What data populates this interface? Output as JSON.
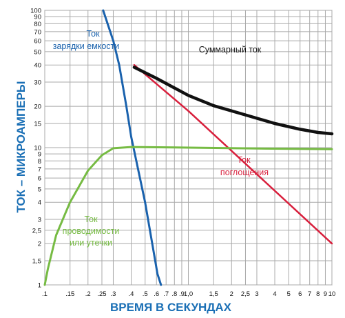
{
  "chart_data": {
    "type": "line",
    "x_scale": "log",
    "y_scale": "log",
    "xlim": [
      0.1,
      10
    ],
    "ylim": [
      1,
      100
    ],
    "grid": true,
    "xlabel": "ВРЕМЯ В СЕКУНДАХ",
    "ylabel": "ТОК – МИКРОАМПЕРЫ",
    "x_ticks": [
      {
        "v": 0.1,
        "label": ".1"
      },
      {
        "v": 0.15,
        "label": ".15"
      },
      {
        "v": 0.2,
        "label": ".2"
      },
      {
        "v": 0.25,
        "label": ".25"
      },
      {
        "v": 0.3,
        "label": ".3"
      },
      {
        "v": 0.4,
        "label": ".4"
      },
      {
        "v": 0.5,
        "label": ".5"
      },
      {
        "v": 0.6,
        "label": ".6"
      },
      {
        "v": 0.7,
        "label": ".7"
      },
      {
        "v": 0.8,
        "label": ".8"
      },
      {
        "v": 0.9,
        "label": ".9"
      },
      {
        "v": 1.0,
        "label": "1,0"
      },
      {
        "v": 1.5,
        "label": "1,5"
      },
      {
        "v": 2.0,
        "label": "2"
      },
      {
        "v": 2.5,
        "label": "2,5"
      },
      {
        "v": 3.0,
        "label": "3"
      },
      {
        "v": 4.0,
        "label": "4"
      },
      {
        "v": 5.0,
        "label": "5"
      },
      {
        "v": 6.0,
        "label": "6"
      },
      {
        "v": 7.0,
        "label": "7"
      },
      {
        "v": 8.0,
        "label": "8"
      },
      {
        "v": 9.0,
        "label": "9"
      },
      {
        "v": 10.0,
        "label": "10"
      }
    ],
    "y_ticks": [
      {
        "v": 1,
        "label": "1"
      },
      {
        "v": 1.5,
        "label": "1,5"
      },
      {
        "v": 2,
        "label": "2"
      },
      {
        "v": 2.5,
        "label": "2,5"
      },
      {
        "v": 3,
        "label": "3"
      },
      {
        "v": 4,
        "label": "4"
      },
      {
        "v": 5,
        "label": "5"
      },
      {
        "v": 6,
        "label": "6"
      },
      {
        "v": 7,
        "label": "7"
      },
      {
        "v": 8,
        "label": "8"
      },
      {
        "v": 9,
        "label": "9"
      },
      {
        "v": 10,
        "label": "10"
      },
      {
        "v": 15,
        "label": "15"
      },
      {
        "v": 20,
        "label": "20"
      },
      {
        "v": 30,
        "label": "30"
      },
      {
        "v": 40,
        "label": "40"
      },
      {
        "v": 50,
        "label": "50"
      },
      {
        "v": 60,
        "label": "60"
      },
      {
        "v": 70,
        "label": "70"
      },
      {
        "v": 80,
        "label": "80"
      },
      {
        "v": 90,
        "label": "90"
      },
      {
        "v": 100,
        "label": "100"
      }
    ],
    "series": [
      {
        "name": "Ток зарядки емкости",
        "color": "#1a62ad",
        "stroke_width": 3,
        "points": [
          [
            0.255,
            100
          ],
          [
            0.3,
            60
          ],
          [
            0.33,
            40
          ],
          [
            0.37,
            20
          ],
          [
            0.4,
            12
          ],
          [
            0.5,
            4
          ],
          [
            0.61,
            1.2
          ],
          [
            0.645,
            1
          ]
        ]
      },
      {
        "name": "Ток поглощения",
        "color": "#d81f3c",
        "stroke_width": 2.5,
        "points": [
          [
            0.42,
            40
          ],
          [
            1.0,
            18.5
          ],
          [
            10,
            2
          ]
        ]
      },
      {
        "name": "Суммарный ток",
        "color": "#111111",
        "stroke_width": 4.5,
        "points": [
          [
            0.42,
            38.5
          ],
          [
            0.6,
            32
          ],
          [
            1.0,
            24
          ],
          [
            1.5,
            20.2
          ],
          [
            2.5,
            17.3
          ],
          [
            4,
            15
          ],
          [
            6,
            13.6
          ],
          [
            8,
            12.9
          ],
          [
            10,
            12.6
          ]
        ]
      },
      {
        "name": "Ток проводимости или утечки",
        "color": "#76bb43",
        "stroke_width": 3,
        "points": [
          [
            0.1,
            1
          ],
          [
            0.105,
            1.3
          ],
          [
            0.12,
            2.3
          ],
          [
            0.15,
            4
          ],
          [
            0.2,
            6.8
          ],
          [
            0.25,
            8.8
          ],
          [
            0.3,
            9.9
          ],
          [
            0.4,
            10.1
          ],
          [
            1.0,
            10.0
          ],
          [
            3,
            9.85
          ],
          [
            10,
            9.75
          ]
        ]
      }
    ],
    "annotations": [
      {
        "id": "charge",
        "lines": [
          "Ток",
          "зарядки емкости"
        ],
        "color": "#1a62ad"
      },
      {
        "id": "total",
        "lines": [
          "Суммарный ток"
        ],
        "color": "#111111"
      },
      {
        "id": "absorb",
        "lines": [
          "Ток",
          "поглощения"
        ],
        "color": "#d81f3c"
      },
      {
        "id": "leak",
        "lines": [
          "Ток",
          "проводимости",
          "или утечки"
        ],
        "color": "#76bb43"
      }
    ],
    "text_colors": {
      "axis_title": "#1a6fb5"
    }
  }
}
